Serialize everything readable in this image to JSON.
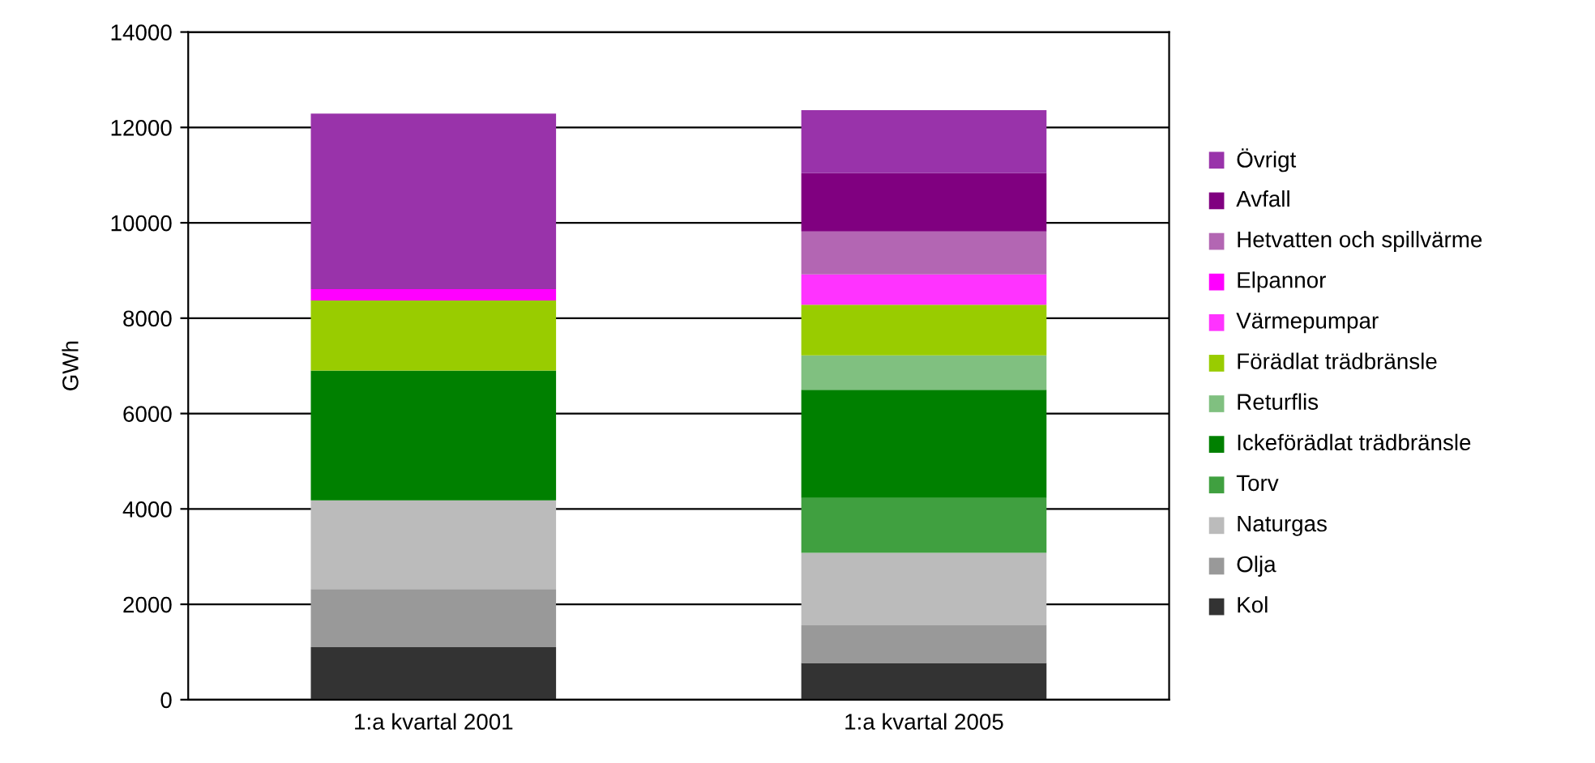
{
  "chart_data": {
    "type": "bar",
    "stacked": true,
    "ylabel": "GWh",
    "categories": [
      "1:a kvartal 2001",
      "1:a kvartal 2005"
    ],
    "series": [
      {
        "name": "Kol",
        "color": "#333333",
        "values": [
          1100,
          770
        ]
      },
      {
        "name": "Olja",
        "color": "#999999",
        "values": [
          1220,
          790
        ]
      },
      {
        "name": "Naturgas",
        "color": "#bbbbbb",
        "values": [
          1860,
          1520
        ]
      },
      {
        "name": "Torv",
        "color": "#40a040",
        "values": [
          0,
          1150
        ]
      },
      {
        "name": "Ickeförädlat trädbränsle",
        "color": "#008000",
        "values": [
          2720,
          2270
        ]
      },
      {
        "name": "Returflis",
        "color": "#80c080",
        "values": [
          0,
          720
        ]
      },
      {
        "name": "Förädlat trädbränsle",
        "color": "#99cc00",
        "values": [
          1470,
          1060
        ]
      },
      {
        "name": "Värmepumpar",
        "color": "#ff33ff",
        "values": [
          0,
          640
        ]
      },
      {
        "name": "Elpannor",
        "color": "#ff00ff",
        "values": [
          240,
          0
        ]
      },
      {
        "name": "Hetvatten och spillvärme",
        "color": "#b366b3",
        "values": [
          0,
          900
        ]
      },
      {
        "name": "Avfall",
        "color": "#800080",
        "values": [
          0,
          1220
        ]
      },
      {
        "name": "Övrigt",
        "color": "#9933aa",
        "values": [
          3680,
          1320
        ]
      }
    ],
    "ylim": [
      0,
      14000
    ],
    "yticks": [
      0,
      2000,
      4000,
      6000,
      8000,
      10000,
      12000,
      14000
    ],
    "grid": "y",
    "legend": "right"
  }
}
